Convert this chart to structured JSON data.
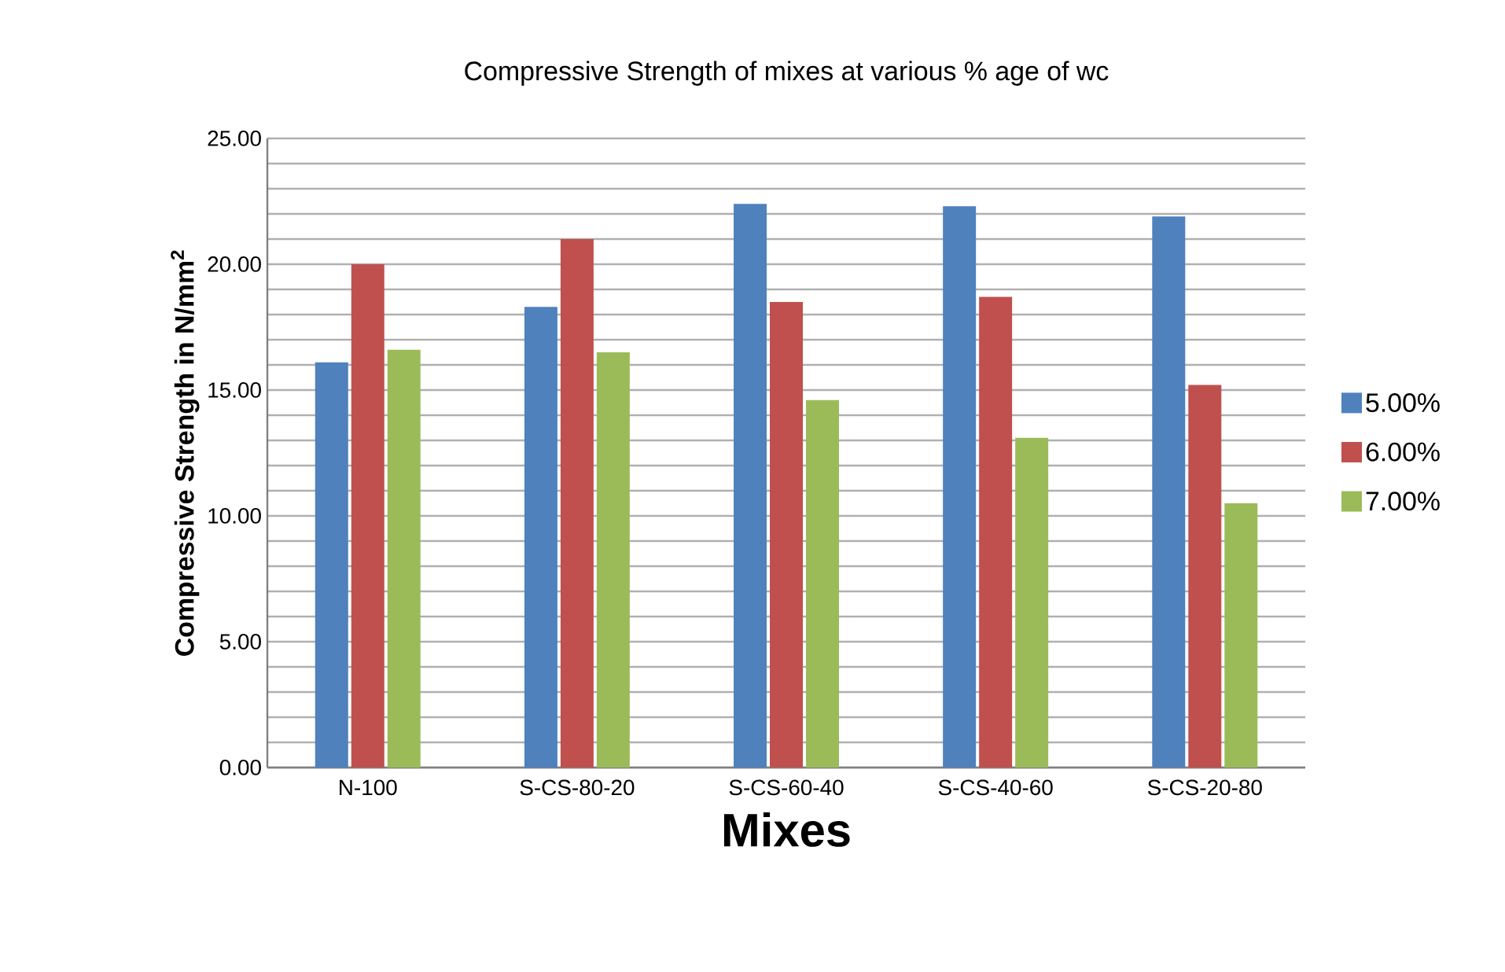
{
  "chart_data": {
    "type": "bar",
    "title": "Compressive Strength of  mixes at various % age of wc",
    "xlabel": "Mixes",
    "ylabel": "Compressive Strength in N/mm$^{2}$",
    "categories": [
      "N-100",
      "S-CS-80-20",
      "S-CS-60-40",
      "S-CS-40-60",
      "S-CS-20-80"
    ],
    "series": [
      {
        "name": "5.00%",
        "color": "#4f81bd",
        "values": [
          16.1,
          18.3,
          22.4,
          22.3,
          21.9
        ]
      },
      {
        "name": "6.00%",
        "color": "#c0504d",
        "values": [
          20.0,
          21.0,
          18.5,
          18.7,
          15.2
        ]
      },
      {
        "name": "7.00%",
        "color": "#9bbb59",
        "values": [
          16.6,
          16.5,
          14.6,
          13.1,
          10.5
        ]
      }
    ],
    "ylim": [
      0,
      25
    ],
    "yticks": [
      {
        "value": 0,
        "label": "0.00"
      },
      {
        "value": 1,
        "label": null
      },
      {
        "value": 2,
        "label": null
      },
      {
        "value": 3,
        "label": null
      },
      {
        "value": 4,
        "label": null
      },
      {
        "value": 5,
        "label": "5.00"
      },
      {
        "value": 6,
        "label": null
      },
      {
        "value": 7,
        "label": null
      },
      {
        "value": 8,
        "label": null
      },
      {
        "value": 9,
        "label": null
      },
      {
        "value": 10,
        "label": "10.00"
      },
      {
        "value": 11,
        "label": null
      },
      {
        "value": 12,
        "label": null
      },
      {
        "value": 13,
        "label": null
      },
      {
        "value": 14,
        "label": null
      },
      {
        "value": 15,
        "label": "15.00"
      },
      {
        "value": 16,
        "label": null
      },
      {
        "value": 17,
        "label": null
      },
      {
        "value": 18,
        "label": null
      },
      {
        "value": 19,
        "label": null
      },
      {
        "value": 20,
        "label": "20.00"
      },
      {
        "value": 21,
        "label": null
      },
      {
        "value": 22,
        "label": null
      },
      {
        "value": 23,
        "label": null
      },
      {
        "value": 24,
        "label": null
      },
      {
        "value": 25,
        "label": "25.00"
      }
    ],
    "grid": "y",
    "legend": "right"
  }
}
